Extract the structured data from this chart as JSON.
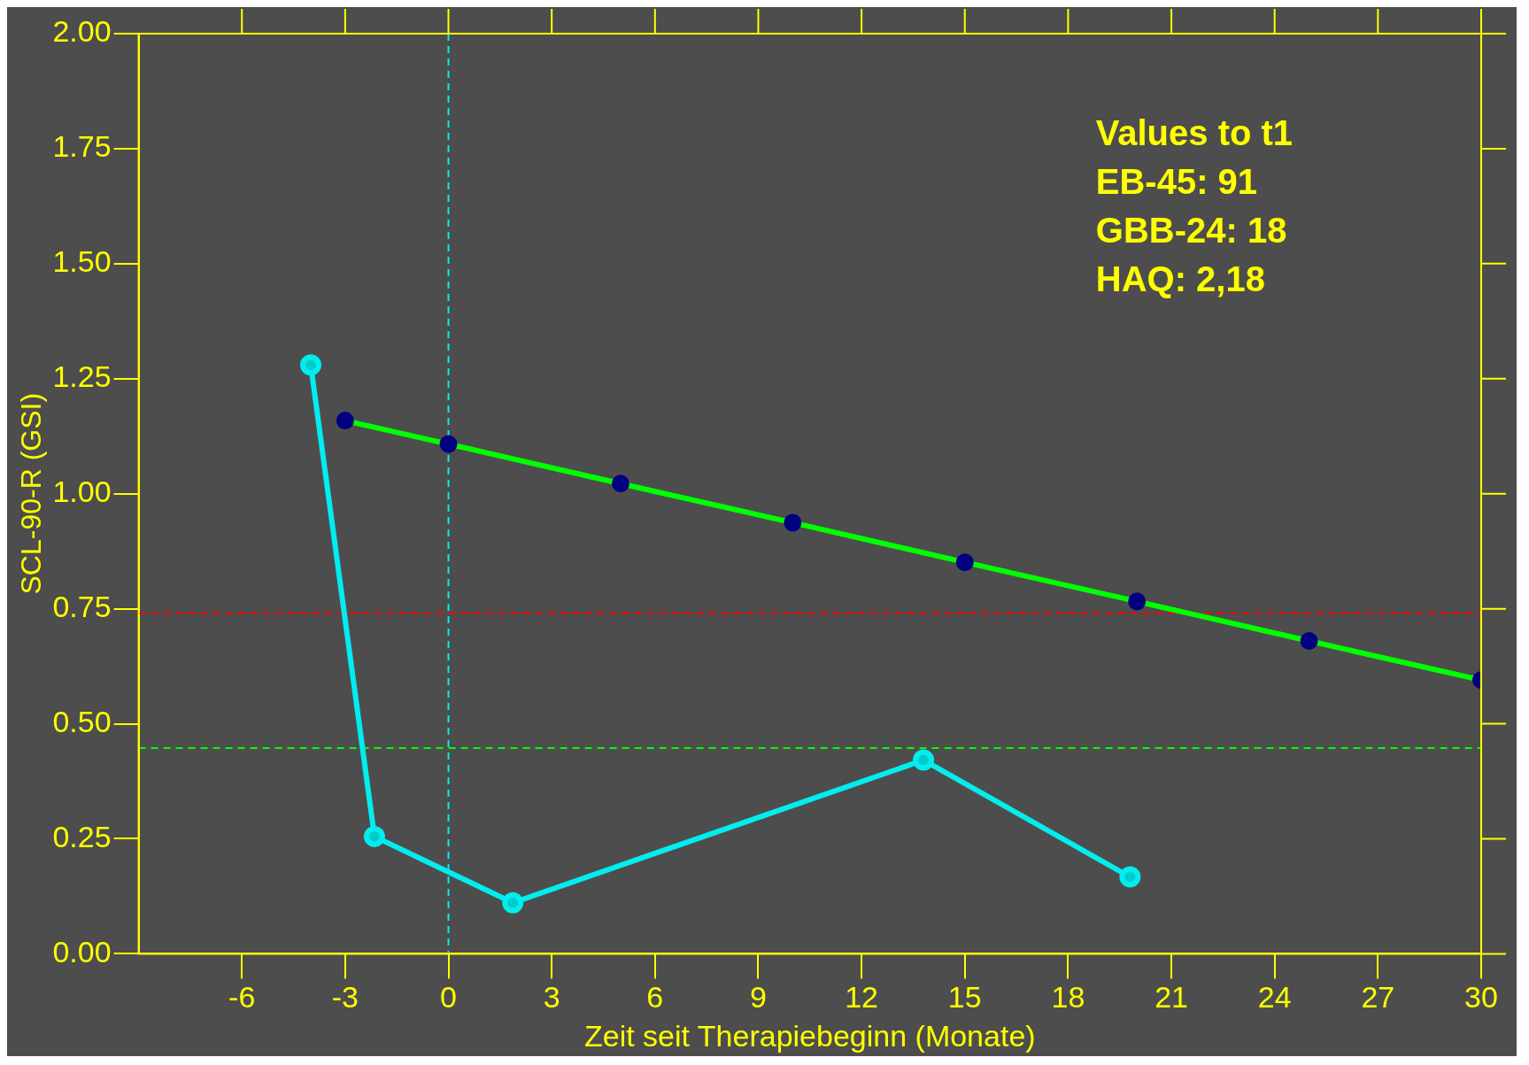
{
  "chart_data": {
    "type": "line",
    "xlabel": "Zeit seit Therapiebeginn (Monate)",
    "ylabel": "SCL-90-R (GSI)",
    "xlim": [
      -9,
      30
    ],
    "xticks": [
      -6,
      -3,
      0,
      3,
      6,
      9,
      12,
      15,
      18,
      21,
      24,
      27,
      30
    ],
    "ylim": [
      0,
      2
    ],
    "yticks": [
      {
        "value": 0,
        "label": "0.00"
      },
      0.25,
      {
        "value": 0.5,
        "label": "0.50"
      },
      0.75,
      {
        "value": 1,
        "label": "1.00"
      },
      1.25,
      {
        "value": 1.5,
        "label": "1.50"
      },
      1.75,
      {
        "value": 2,
        "label": "2.00"
      }
    ],
    "series": [
      {
        "color": "#00eeee",
        "x": [
          -4,
          -2.15,
          1.87,
          13.8,
          19.8
        ],
        "values": [
          1.28,
          0.255,
          0.111,
          0.421,
          0.167
        ]
      },
      {
        "color": "#00ff00",
        "x": [
          -3,
          0,
          5,
          10,
          15,
          20,
          25,
          30
        ],
        "values": [
          1.159,
          1.108,
          1.022,
          0.937,
          0.851,
          0.766,
          0.68,
          0.595
        ]
      }
    ],
    "ref_lines": [
      {
        "axis": "x",
        "value": 0,
        "color": "#00eeee",
        "line_style": "dashed"
      },
      {
        "axis": "y",
        "value": 0.74,
        "color": "#ff0000",
        "line_style": "dashed"
      },
      {
        "axis": "y",
        "value": 0.447,
        "color": "#00ff00",
        "line_style": "dashed"
      }
    ],
    "annotations": [
      "Values to t1",
      "EB-45: 91",
      "GBB-24: 18",
      "HAQ: 2,18"
    ],
    "marker": "circle",
    "grid": false,
    "legend": false
  }
}
